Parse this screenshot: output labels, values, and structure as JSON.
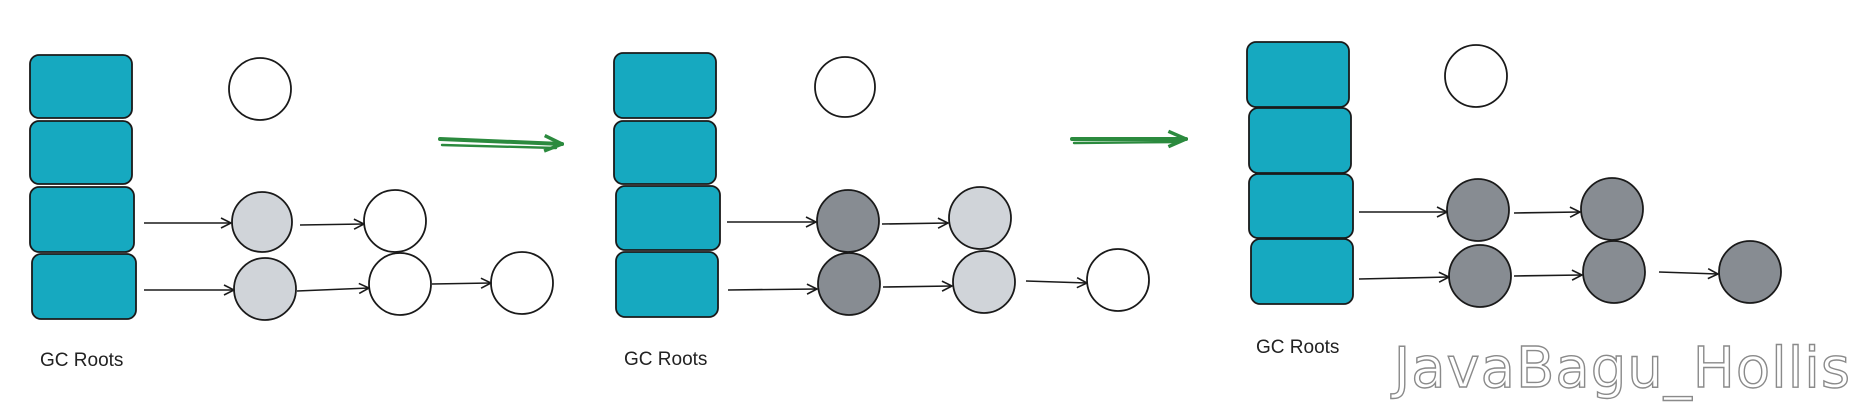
{
  "labels": {
    "gc_roots_1": "GC Roots",
    "gc_roots_2": "GC Roots",
    "gc_roots_3": "GC Roots"
  },
  "watermark": "JavaBagu_Hollis",
  "colors": {
    "root_fill": "#16a9c0",
    "white_node": "#ffffff",
    "gray_node": "#d0d4d9",
    "black_node": "#878c92",
    "arrow": "#1a1a1a",
    "transition_arrow": "#2b8a3e",
    "stroke": "#1a1a1a"
  },
  "stages": [
    {
      "roots_count": 4,
      "nodes": {
        "unreachable": "white",
        "r3_1": "gray",
        "r3_2": "white",
        "r4_1": "gray",
        "r4_2": "white",
        "r4_3": "white"
      }
    },
    {
      "roots_count": 4,
      "nodes": {
        "unreachable": "white",
        "r3_1": "black",
        "r3_2": "gray",
        "r4_1": "black",
        "r4_2": "gray",
        "r4_3": "white"
      }
    },
    {
      "roots_count": 4,
      "nodes": {
        "unreachable": "white",
        "r3_1": "black",
        "r3_2": "black",
        "r4_1": "black",
        "r4_2": "black",
        "r4_3": "black"
      }
    }
  ]
}
